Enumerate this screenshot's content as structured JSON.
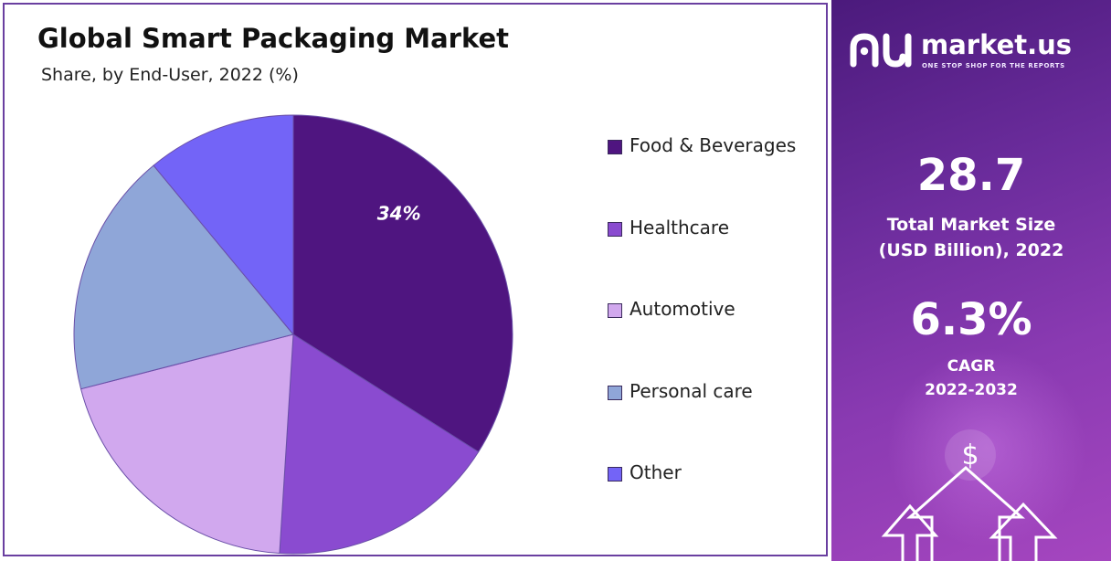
{
  "chart_data": {
    "type": "pie",
    "title": "Global Smart Packaging Market",
    "subtitle": "Share, by End-User, 2022 (%)",
    "categories": [
      "Food & Beverages",
      "Healthcare",
      "Automotive",
      "Personal care",
      "Other"
    ],
    "values": [
      34,
      17,
      20,
      18,
      11
    ],
    "colors": [
      "#4f1580",
      "#8a4bd0",
      "#d1a8ee",
      "#8fa6d8",
      "#7364f7"
    ],
    "data_labels": [
      {
        "category": "Food & Beverages",
        "text": "34%"
      }
    ],
    "start_angle_deg": 0,
    "direction": "clockwise",
    "legend_position": "right"
  },
  "sidebar": {
    "brand": "market.us",
    "tagline": "ONE STOP SHOP FOR THE REPORTS",
    "market_size_value": "28.7",
    "market_size_label_line1": "Total Market Size",
    "market_size_label_line2": "(USD Billion), 2022",
    "cagr_value": "6.3%",
    "cagr_label_line1": "CAGR",
    "cagr_label_line2": "2022-2032",
    "currency_symbol": "$"
  }
}
